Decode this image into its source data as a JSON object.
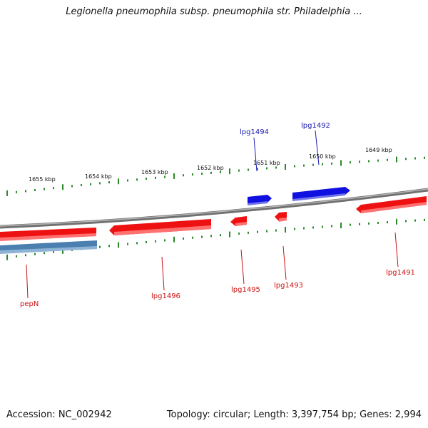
{
  "title": "Legionella pneumophila subsp. pneumophila str. Philadelphia ...",
  "footer": {
    "accession": "Accession: NC_002942",
    "summary": "Topology: circular; Length: 3,397,754 bp; Genes: 2,994"
  },
  "colors": {
    "backbone": "#808080",
    "tick": "#2a8a2a",
    "forward_gene": "#1010e0",
    "reverse_gene": "#ee1111",
    "rna_gene": "#4a7fb0",
    "forward_label": "#1a1ab0",
    "reverse_label": "#cc1111"
  },
  "scale_labels": [
    "1655 kbp",
    "1654 kbp",
    "1653 kbp",
    "1652 kbp",
    "1651 kbp",
    "1650 kbp",
    "1649 kbp"
  ],
  "genes": [
    {
      "name": "lpg1494",
      "strand": "forward"
    },
    {
      "name": "lpg1492",
      "strand": "forward"
    },
    {
      "name": "pepN",
      "strand": "reverse",
      "type": "rna"
    },
    {
      "name": "lpg1496",
      "strand": "reverse"
    },
    {
      "name": "lpg1495",
      "strand": "reverse"
    },
    {
      "name": "lpg1493",
      "strand": "reverse"
    },
    {
      "name": "lpg1491",
      "strand": "reverse"
    }
  ]
}
